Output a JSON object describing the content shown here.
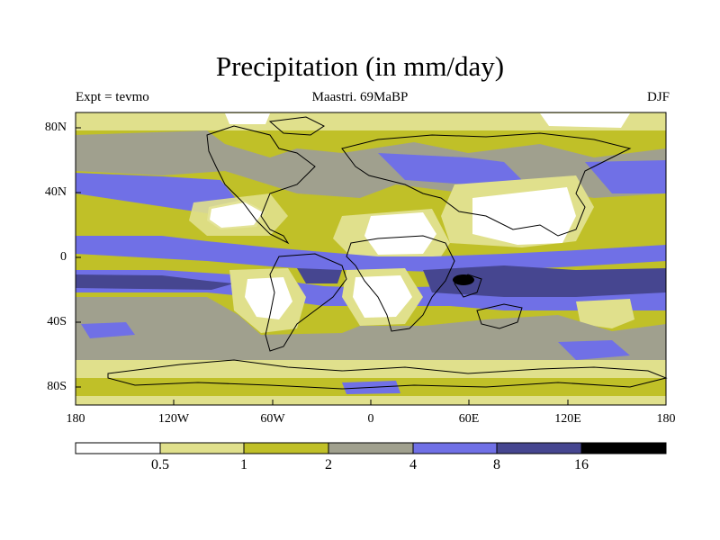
{
  "title": "Precipitation (in mm/day)",
  "subtitle_left": "Expt = tevmo",
  "subtitle_center": "Maastri.  69MaBP",
  "subtitle_right": "DJF",
  "lat_labels": [
    "80N",
    "40N",
    "0",
    "40S",
    "80S"
  ],
  "lon_labels": [
    "180",
    "120W",
    "60W",
    "0",
    "60E",
    "120E",
    "180"
  ],
  "legend": {
    "labels": [
      "0.5",
      "1",
      "2",
      "4",
      "8",
      "16"
    ],
    "colors": [
      "#ffffff",
      "#e0e08c",
      "#c0c028",
      "#a0a08e",
      "#7070e6",
      "#464690",
      "#000000"
    ]
  },
  "colors": {
    "white": "#ffffff",
    "light_yellow": "#e0e08c",
    "olive": "#c0c028",
    "gray": "#a0a08e",
    "blue": "#7070e6",
    "dark_blue": "#464690",
    "black": "#000000",
    "coast": "#000000"
  }
}
